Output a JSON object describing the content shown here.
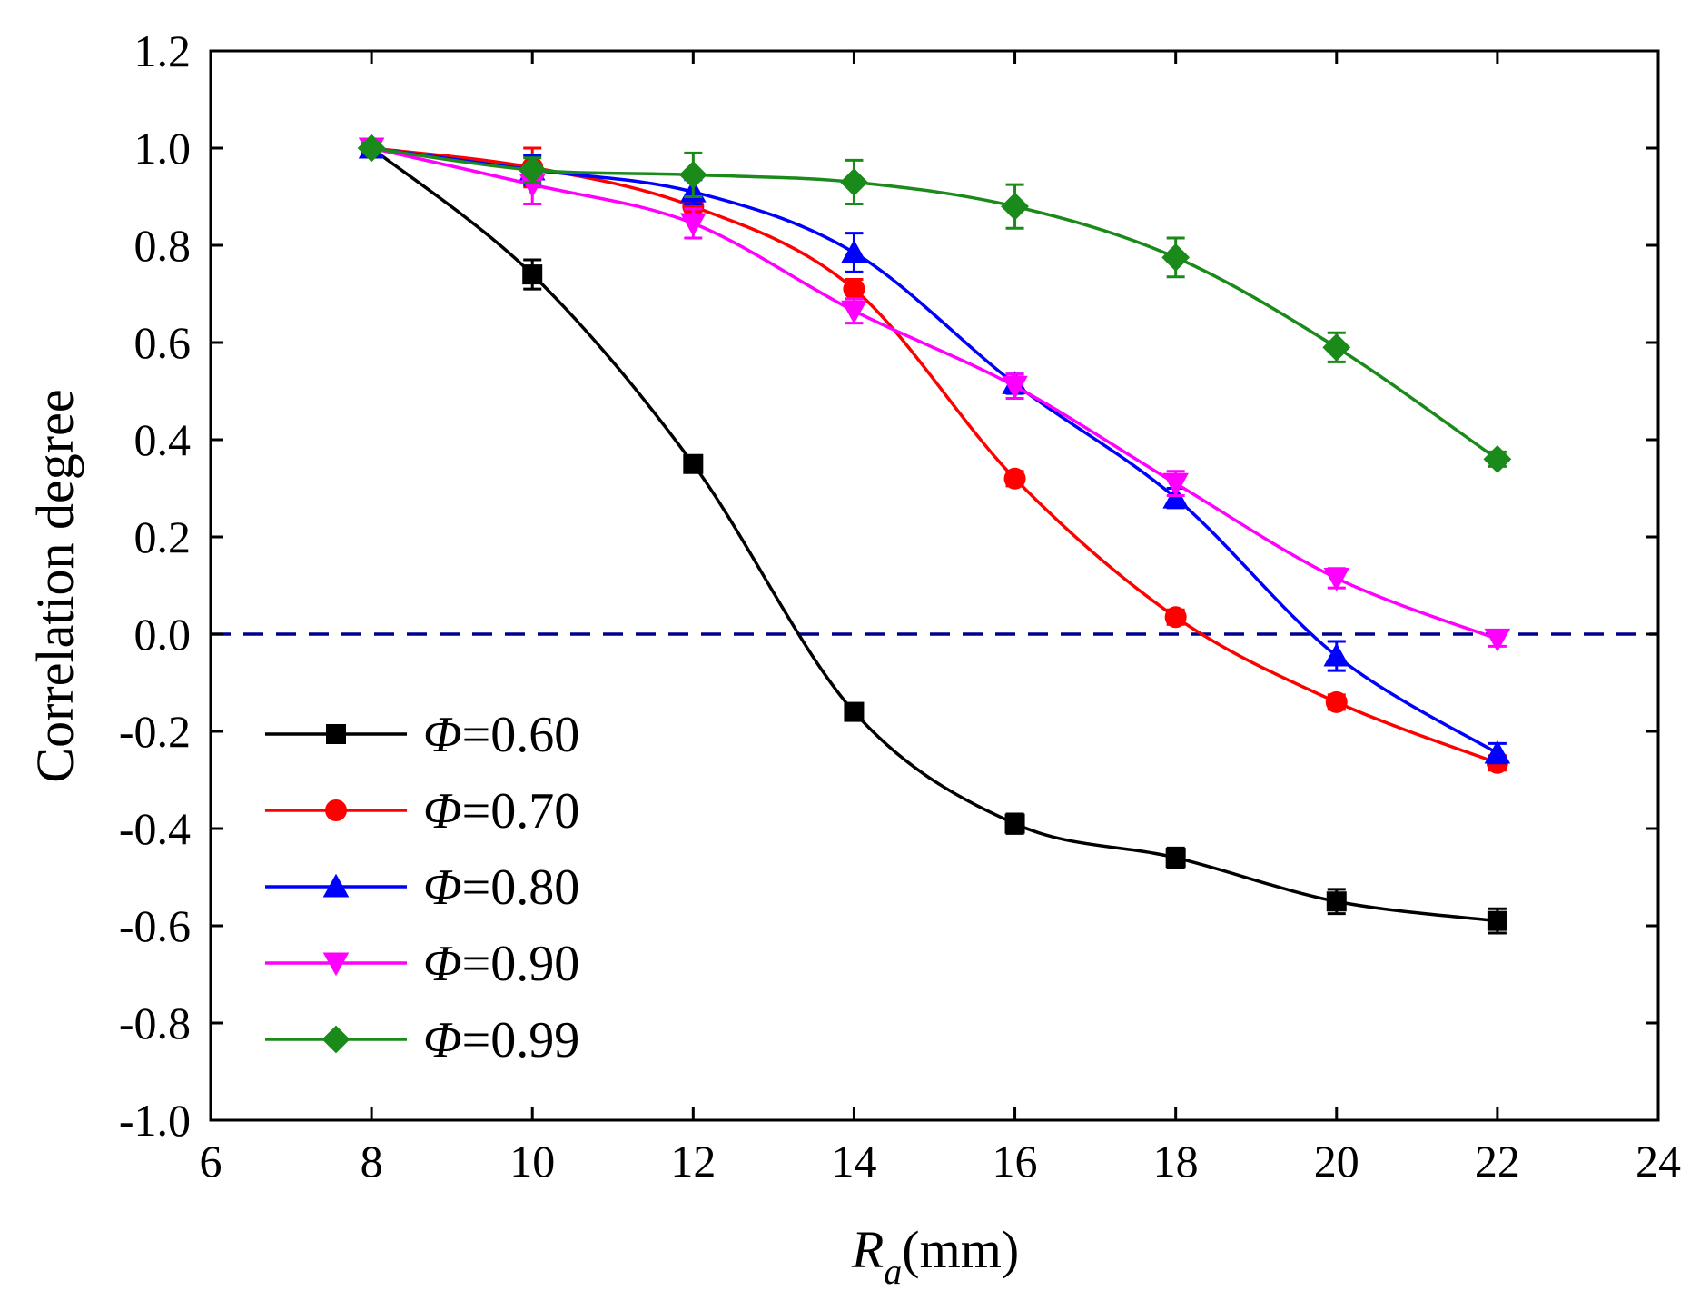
{
  "chart_data": {
    "type": "line",
    "title": "",
    "xlabel": "R",
    "xlabel_subscript": "a",
    "xlabel_unit": "(mm)",
    "ylabel": "Correlation degree",
    "xlim": [
      6,
      24
    ],
    "ylim": [
      -1.0,
      1.2
    ],
    "xticks": [
      6,
      8,
      10,
      12,
      14,
      16,
      18,
      20,
      22,
      24
    ],
    "yticks": [
      -1.0,
      -0.8,
      -0.6,
      -0.4,
      -0.2,
      0.0,
      0.2,
      0.4,
      0.6,
      0.8,
      1.0,
      1.2
    ],
    "xtick_labels": [
      "6",
      "8",
      "10",
      "12",
      "14",
      "16",
      "18",
      "20",
      "22",
      "24"
    ],
    "ytick_labels": [
      "-1.0",
      "-0.8",
      "-0.6",
      "-0.4",
      "-0.2",
      "0.0",
      "0.2",
      "0.4",
      "0.6",
      "0.8",
      "1.0",
      "1.2"
    ],
    "grid": false,
    "reference_line": {
      "y": 0.0,
      "style": "dashed",
      "color": "#00008b"
    },
    "legend_position": "bottom-left",
    "x": [
      8,
      10,
      12,
      14,
      16,
      18,
      20,
      22
    ],
    "series": [
      {
        "name": "Φ=0.60",
        "symbol": "Φ",
        "value_label": "=0.60",
        "color": "#000000",
        "marker": "square",
        "values": [
          1.0,
          0.74,
          0.35,
          -0.16,
          -0.39,
          -0.46,
          -0.55,
          -0.59
        ],
        "errors": [
          0.01,
          0.03,
          0.015,
          0.015,
          0.02,
          0.02,
          0.025,
          0.025
        ]
      },
      {
        "name": "Φ=0.70",
        "symbol": "Φ",
        "value_label": "=0.70",
        "color": "#ff0000",
        "marker": "circle",
        "values": [
          1.0,
          0.96,
          0.88,
          0.71,
          0.32,
          0.035,
          -0.14,
          -0.265
        ],
        "errors": [
          0.01,
          0.04,
          0.02,
          0.02,
          0.015,
          0.015,
          0.015,
          0.015
        ]
      },
      {
        "name": "Φ=0.80",
        "symbol": "Φ",
        "value_label": "=0.80",
        "color": "#0000ff",
        "marker": "triangle-up",
        "values": [
          1.0,
          0.955,
          0.91,
          0.785,
          0.515,
          0.28,
          -0.045,
          -0.245
        ],
        "errors": [
          0.01,
          0.03,
          0.025,
          0.04,
          0.02,
          0.02,
          0.03,
          0.02
        ]
      },
      {
        "name": "Φ=0.90",
        "symbol": "Φ",
        "value_label": "=0.90",
        "color": "#ff00ff",
        "marker": "triangle-down",
        "values": [
          1.0,
          0.925,
          0.845,
          0.665,
          0.51,
          0.31,
          0.115,
          -0.01
        ],
        "errors": [
          0.01,
          0.04,
          0.03,
          0.025,
          0.025,
          0.025,
          0.02,
          0.015
        ]
      },
      {
        "name": "Φ=0.99",
        "symbol": "Φ",
        "value_label": "=0.99",
        "color": "#1a8a1a",
        "marker": "diamond",
        "values": [
          1.0,
          0.955,
          0.945,
          0.93,
          0.88,
          0.775,
          0.59,
          0.36
        ],
        "errors": [
          0.01,
          0.025,
          0.045,
          0.045,
          0.045,
          0.04,
          0.03,
          0.015
        ]
      }
    ]
  }
}
